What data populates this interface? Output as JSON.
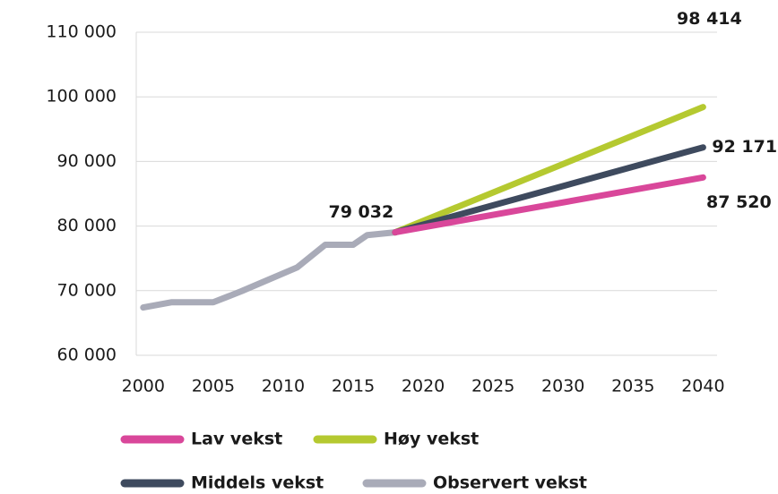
{
  "chart_data": {
    "type": "line",
    "xlim": [
      1999.5,
      2041
    ],
    "xticks": [
      2000,
      2005,
      2010,
      2015,
      2020,
      2025,
      2030,
      2035,
      2040
    ],
    "ylim": [
      60000,
      110000
    ],
    "yticks": [
      {
        "value": 60000,
        "label": "60 000"
      },
      {
        "value": 70000,
        "label": "70 000"
      },
      {
        "value": 80000,
        "label": "80 000"
      },
      {
        "value": 90000,
        "label": "90 000"
      },
      {
        "value": 100000,
        "label": "100 000"
      },
      {
        "value": 110000,
        "label": "110 000"
      }
    ],
    "grid": true,
    "series": [
      {
        "name": "Lav vekst",
        "color": "#d9479a",
        "x": [
          2018,
          2040
        ],
        "values": [
          79032,
          87520
        ],
        "value_labels": [
          null,
          "87 520"
        ]
      },
      {
        "name": "Høy vekst",
        "color": "#b5c930",
        "x": [
          2018,
          2040
        ],
        "values": [
          79032,
          98414
        ],
        "value_labels": [
          null,
          "98 414"
        ]
      },
      {
        "name": "Middels vekst",
        "color": "#3e4a5e",
        "x": [
          2018,
          2040
        ],
        "values": [
          79032,
          92171
        ],
        "value_labels": [
          null,
          "92 171"
        ]
      },
      {
        "name": "Observert vekst",
        "color": "#a9abb8",
        "x": [
          2000,
          2002,
          2005,
          2007,
          2011,
          2013,
          2015,
          2016,
          2018
        ],
        "values": [
          67400,
          68200,
          68200,
          69900,
          73600,
          77100,
          77100,
          78600,
          79032
        ],
        "value_labels": [
          null,
          null,
          null,
          null,
          null,
          null,
          null,
          null,
          "79 032"
        ]
      }
    ]
  }
}
